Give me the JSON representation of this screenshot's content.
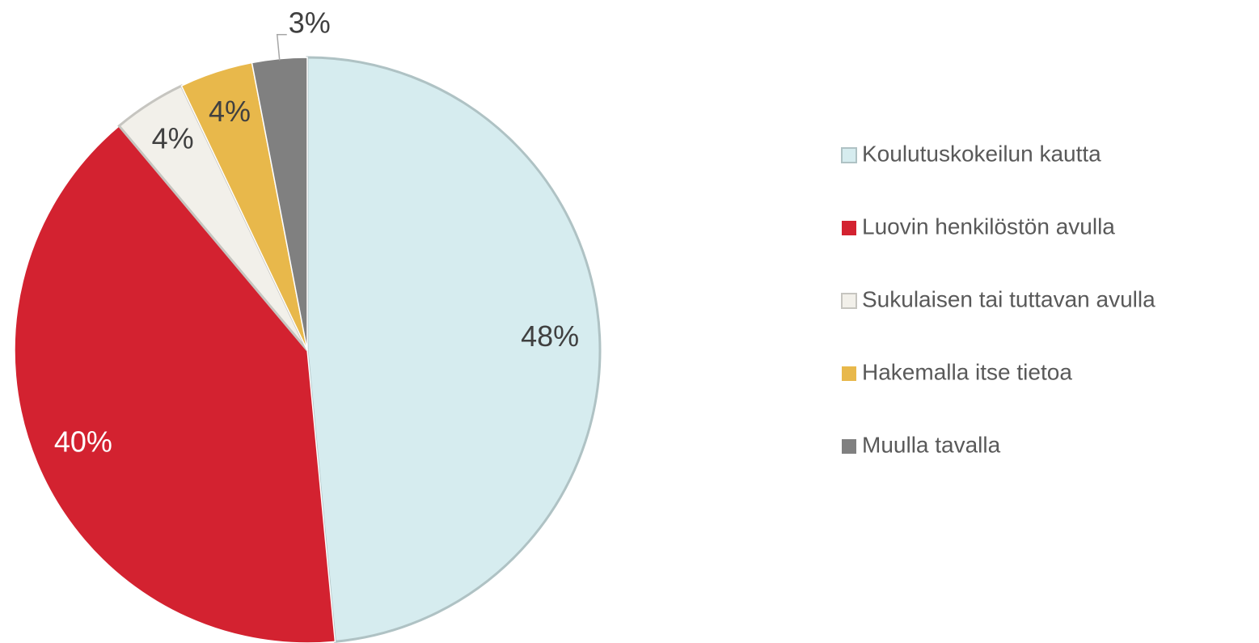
{
  "chart_data": {
    "type": "pie",
    "categories": [
      "Koulutuskokeilun kautta",
      "Luovin henkilöstön avulla",
      "Sukulaisen tai tuttavan avulla",
      "Hakemalla itse tietoa",
      "Muulla tavalla"
    ],
    "values": [
      48,
      40,
      4,
      4,
      3
    ],
    "value_labels": [
      "48%",
      "40%",
      "4%",
      "4%",
      "3%"
    ],
    "colors": [
      "#d6ecef",
      "#d32230",
      "#f2f0ea",
      "#e8b84b",
      "#808080"
    ],
    "legend": "right"
  }
}
